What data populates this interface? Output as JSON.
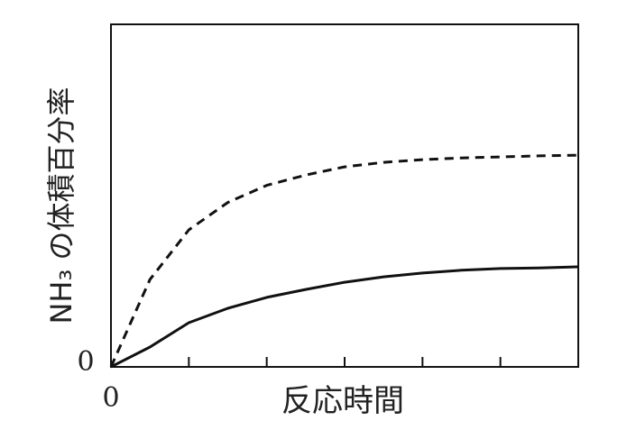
{
  "chart_data": {
    "type": "line",
    "ylabel": "NH₃ の体積百分率",
    "xlabel": "反応時間",
    "x": [
      0,
      0.5,
      1,
      1.5,
      2,
      2.5,
      3,
      3.5,
      4,
      4.5,
      5,
      5.5,
      6
    ],
    "series": [
      {
        "color": "#111111",
        "style": "dashed",
        "values": [
          0,
          25.5,
          40,
          48,
          53,
          56,
          58.4,
          59.7,
          60.5,
          61,
          61.3,
          61.6,
          61.8
        ]
      },
      {
        "color": "#111111",
        "style": "solid",
        "values": [
          0,
          5.8,
          12.9,
          17.1,
          20.3,
          22.6,
          24.7,
          26.3,
          27.4,
          28.2,
          28.7,
          28.9,
          29.2
        ]
      }
    ],
    "xlim": [
      0,
      6
    ],
    "ylim": [
      0,
      100
    ],
    "xticks": [
      0
    ],
    "yticks": [
      0
    ],
    "minor_xticks": [
      1,
      2,
      3,
      4,
      5
    ]
  }
}
